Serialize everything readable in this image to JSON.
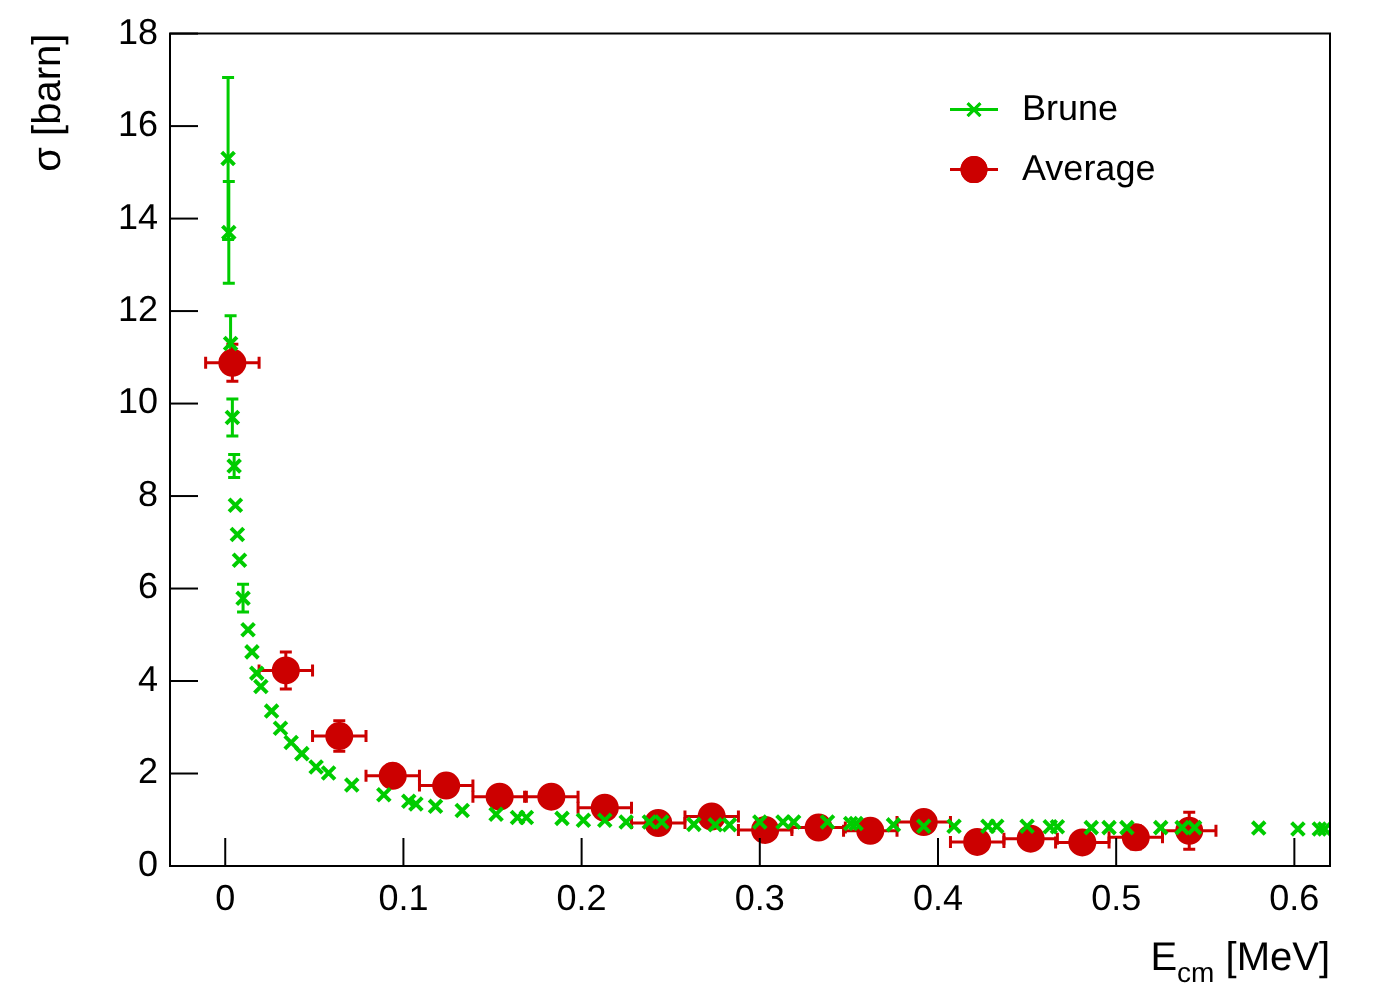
{
  "chart_data": {
    "type": "scatter",
    "xlabel": "E$_{cm}$ [MeV]",
    "ylabel": "σ [barn]",
    "xlim": [
      -0.031,
      0.62
    ],
    "ylim": [
      0,
      18
    ],
    "xticks": [
      0,
      0.1,
      0.2,
      0.3,
      0.4,
      0.5,
      0.6
    ],
    "yticks": [
      0,
      2,
      4,
      6,
      8,
      10,
      12,
      14,
      16,
      18
    ],
    "grid": false,
    "legend": "top right",
    "series": [
      {
        "name": "Brune",
        "color": "#00cc00",
        "marker": "cross",
        "x": [
          0.0016,
          0.002,
          0.003,
          0.004,
          0.005,
          0.0057,
          0.0068,
          0.008,
          0.01,
          0.0128,
          0.015,
          0.0177,
          0.02,
          0.026,
          0.031,
          0.037,
          0.043,
          0.051,
          0.058,
          0.071,
          0.089,
          0.103,
          0.107,
          0.118,
          0.133,
          0.152,
          0.164,
          0.169,
          0.189,
          0.201,
          0.213,
          0.225,
          0.238,
          0.245,
          0.263,
          0.275,
          0.283,
          0.3,
          0.313,
          0.319,
          0.338,
          0.351,
          0.354,
          0.375,
          0.392,
          0.409,
          0.428,
          0.433,
          0.45,
          0.463,
          0.467,
          0.486,
          0.496,
          0.506,
          0.525,
          0.537,
          0.544,
          0.58,
          0.602,
          0.614,
          0.617
        ],
        "values": [
          15.3,
          13.7,
          11.3,
          9.7,
          8.65,
          7.8,
          7.17,
          6.61,
          5.79,
          5.11,
          4.63,
          4.17,
          3.88,
          3.35,
          2.98,
          2.67,
          2.43,
          2.14,
          2.01,
          1.75,
          1.54,
          1.4,
          1.34,
          1.29,
          1.2,
          1.12,
          1.05,
          1.05,
          1.03,
          0.99,
          0.99,
          0.95,
          0.95,
          0.95,
          0.9,
          0.89,
          0.89,
          0.95,
          0.95,
          0.95,
          0.95,
          0.92,
          0.92,
          0.89,
          0.86,
          0.86,
          0.86,
          0.86,
          0.86,
          0.85,
          0.85,
          0.83,
          0.83,
          0.83,
          0.83,
          0.83,
          0.83,
          0.82,
          0.8,
          0.8,
          0.8
        ],
        "errors": [
          1.75,
          1.1,
          0.6,
          0.4,
          0.25,
          null,
          null,
          null,
          0.3,
          null,
          null,
          null,
          null,
          null,
          null,
          null,
          null,
          null,
          null,
          null,
          null,
          null,
          null,
          null,
          null,
          null,
          null,
          null,
          null,
          null,
          null,
          null,
          null,
          null,
          null,
          null,
          null,
          null,
          null,
          null,
          null,
          null,
          null,
          null,
          null,
          null,
          null,
          null,
          null,
          null,
          null,
          null,
          null,
          null,
          null,
          null,
          null,
          null,
          null,
          null,
          null
        ]
      },
      {
        "name": "Average",
        "color": "#cc0000",
        "marker": "circle",
        "x": [
          0.004,
          0.034,
          0.064,
          0.094,
          0.124,
          0.154,
          0.183,
          0.213,
          0.243,
          0.273,
          0.303,
          0.333,
          0.362,
          0.392,
          0.422,
          0.452,
          0.481,
          0.511,
          0.541
        ],
        "values": [
          10.88,
          4.23,
          2.81,
          1.95,
          1.74,
          1.5,
          1.5,
          1.26,
          0.93,
          1.07,
          0.78,
          0.83,
          0.76,
          0.95,
          0.52,
          0.59,
          0.51,
          0.62,
          0.76
        ],
        "errors": [
          0.4,
          0.4,
          0.33,
          null,
          null,
          null,
          null,
          null,
          null,
          null,
          null,
          null,
          null,
          null,
          null,
          null,
          null,
          0.25,
          0.4
        ],
        "xerrors": [
          0.015,
          0.015,
          0.015,
          0.015,
          0.015,
          0.015,
          0.015,
          0.015,
          0.015,
          0.015,
          0.015,
          0.015,
          0.015,
          0.015,
          0.015,
          0.015,
          0.015,
          0.015,
          0.015
        ]
      }
    ]
  }
}
